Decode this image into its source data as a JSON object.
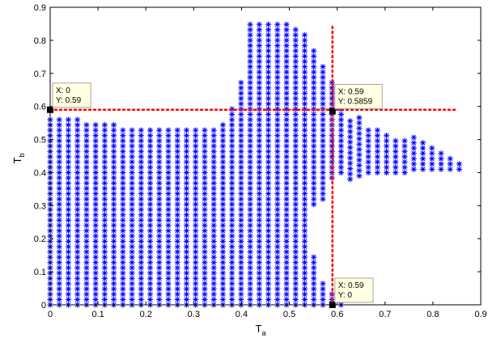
{
  "chart_data": {
    "type": "scatter",
    "title": "",
    "xlabel": "T",
    "xlabel_sub": "a",
    "ylabel": "T",
    "ylabel_sub": "b",
    "xlim": [
      0,
      0.9
    ],
    "ylim": [
      0,
      0.9
    ],
    "xticks": [
      "0",
      "0.1",
      "0.2",
      "0.3",
      "0.4",
      "0.5",
      "0.6",
      "0.7",
      "0.8",
      "0.9"
    ],
    "yticks": [
      "0",
      "0.1",
      "0.2",
      "0.3",
      "0.4",
      "0.5",
      "0.6",
      "0.7",
      "0.8",
      "0.9"
    ],
    "grid": false,
    "legend": "none",
    "marker": "asterisk",
    "marker_color": "#0000ff",
    "marker_y_spacing": 0.016,
    "columns": [
      {
        "x": 0.0,
        "y_min": 0.0,
        "y_max": 0.57
      },
      {
        "x": 0.019,
        "y_min": 0.0,
        "y_max": 0.57
      },
      {
        "x": 0.038,
        "y_min": 0.0,
        "y_max": 0.57
      },
      {
        "x": 0.057,
        "y_min": 0.0,
        "y_max": 0.57
      },
      {
        "x": 0.076,
        "y_min": 0.0,
        "y_max": 0.55
      },
      {
        "x": 0.095,
        "y_min": 0.0,
        "y_max": 0.55
      },
      {
        "x": 0.114,
        "y_min": 0.0,
        "y_max": 0.55
      },
      {
        "x": 0.133,
        "y_min": 0.0,
        "y_max": 0.55
      },
      {
        "x": 0.152,
        "y_min": 0.0,
        "y_max": 0.54
      },
      {
        "x": 0.171,
        "y_min": 0.0,
        "y_max": 0.54
      },
      {
        "x": 0.19,
        "y_min": 0.0,
        "y_max": 0.54
      },
      {
        "x": 0.209,
        "y_min": 0.0,
        "y_max": 0.54
      },
      {
        "x": 0.228,
        "y_min": 0.0,
        "y_max": 0.54
      },
      {
        "x": 0.247,
        "y_min": 0.0,
        "y_max": 0.54
      },
      {
        "x": 0.266,
        "y_min": 0.0,
        "y_max": 0.54
      },
      {
        "x": 0.285,
        "y_min": 0.0,
        "y_max": 0.54
      },
      {
        "x": 0.304,
        "y_min": 0.0,
        "y_max": 0.54
      },
      {
        "x": 0.323,
        "y_min": 0.0,
        "y_max": 0.54
      },
      {
        "x": 0.342,
        "y_min": 0.0,
        "y_max": 0.54
      },
      {
        "x": 0.361,
        "y_min": 0.0,
        "y_max": 0.55
      },
      {
        "x": 0.38,
        "y_min": 0.0,
        "y_max": 0.6
      },
      {
        "x": 0.399,
        "y_min": 0.0,
        "y_max": 0.68
      },
      {
        "x": 0.418,
        "y_min": 0.0,
        "y_max": 0.85
      },
      {
        "x": 0.437,
        "y_min": 0.0,
        "y_max": 0.85
      },
      {
        "x": 0.456,
        "y_min": 0.0,
        "y_max": 0.85
      },
      {
        "x": 0.475,
        "y_min": 0.0,
        "y_max": 0.85
      },
      {
        "x": 0.494,
        "y_min": 0.0,
        "y_max": 0.85
      },
      {
        "x": 0.513,
        "y_min": 0.0,
        "y_max": 0.84
      },
      {
        "x": 0.532,
        "y_min": 0.0,
        "y_max": 0.82
      },
      {
        "x": 0.551,
        "y_min": 0.0,
        "y_max": 0.78
      },
      {
        "x": 0.57,
        "y_min": 0.0,
        "y_max": 0.73
      },
      {
        "x": 0.589,
        "y_min": 0.0,
        "y_max": 0.68
      },
      {
        "x": 0.608,
        "y_min": 0.0,
        "y_max": 0.64
      },
      {
        "x": 0.627,
        "y_min": 0.0,
        "y_max": 0.57
      },
      {
        "x": 0.646,
        "y_min": 0.0,
        "y_max": 0.57
      }
    ],
    "right_columns": [
      {
        "x": 0.627,
        "y_min": 0.38,
        "y_max": 0.57
      },
      {
        "x": 0.646,
        "y_min": 0.39,
        "y_max": 0.57
      },
      {
        "x": 0.665,
        "y_min": 0.4,
        "y_max": 0.54
      },
      {
        "x": 0.684,
        "y_min": 0.4,
        "y_max": 0.53
      },
      {
        "x": 0.703,
        "y_min": 0.4,
        "y_max": 0.52
      },
      {
        "x": 0.722,
        "y_min": 0.4,
        "y_max": 0.51
      },
      {
        "x": 0.741,
        "y_min": 0.4,
        "y_max": 0.51
      },
      {
        "x": 0.76,
        "y_min": 0.41,
        "y_max": 0.51
      },
      {
        "x": 0.779,
        "y_min": 0.41,
        "y_max": 0.49
      },
      {
        "x": 0.798,
        "y_min": 0.41,
        "y_max": 0.48
      },
      {
        "x": 0.817,
        "y_min": 0.41,
        "y_max": 0.47
      },
      {
        "x": 0.836,
        "y_min": 0.41,
        "y_max": 0.45
      },
      {
        "x": 0.855,
        "y_min": 0.41,
        "y_max": 0.44
      }
    ],
    "gaps": [
      {
        "x": 0.551,
        "y_from": 0.16,
        "y_to": 0.3
      },
      {
        "x": 0.57,
        "y_from": 0.07,
        "y_to": 0.32
      },
      {
        "x": 0.589,
        "y_from": 0.04,
        "y_to": 0.37
      },
      {
        "x": 0.608,
        "y_from": 0.0,
        "y_to": 0.4
      },
      {
        "x": 0.627,
        "y_from": 0.0,
        "y_to": 0.38
      },
      {
        "x": 0.646,
        "y_from": 0.0,
        "y_to": 0.39
      }
    ],
    "reference_lines": [
      {
        "orientation": "horizontal",
        "y": 0.59,
        "x_from": 0.0,
        "x_to": 0.85,
        "color": "#ff0000",
        "style": "dotted"
      },
      {
        "orientation": "vertical",
        "x": 0.59,
        "y_from": 0.0,
        "y_to": 0.85,
        "color": "#ff0000",
        "style": "dotted"
      }
    ],
    "datatips": [
      {
        "x": 0,
        "y": 0.59,
        "lines": [
          "X: 0",
          "Y: 0.59"
        ],
        "placement": "above-right"
      },
      {
        "x": 0.59,
        "y": 0.5859,
        "lines": [
          "X: 0.59",
          "Y: 0.5859"
        ],
        "placement": "above-right"
      },
      {
        "x": 0.59,
        "y": 0,
        "lines": [
          "X: 0.59",
          "Y: 0"
        ],
        "placement": "above-right"
      }
    ]
  }
}
